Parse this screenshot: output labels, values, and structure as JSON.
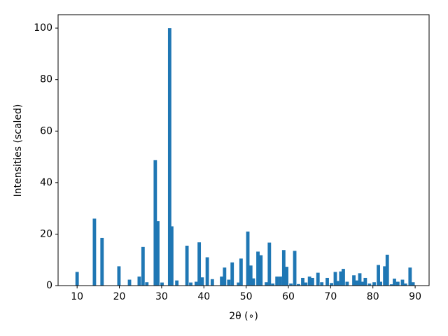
{
  "chart_data": {
    "type": "bar",
    "xlabel": "2θ (∘)",
    "ylabel": "Intensities (scaled)",
    "x": [
      10,
      14.1,
      15.9,
      19.9,
      22.4,
      24.7,
      25.6,
      26.5,
      28.5,
      29.1,
      30.1,
      31.9,
      32.4,
      33.6,
      36.0,
      36.9,
      38.2,
      38.9,
      39.6,
      40.8,
      42.0,
      44.2,
      44.9,
      45.9,
      46.7,
      48.2,
      48.8,
      50.4,
      51.1,
      51.7,
      52.8,
      53.5,
      54.8,
      55.5,
      56.3,
      57.3,
      58.1,
      58.9,
      59.6,
      60.6,
      61.5,
      62.4,
      63.4,
      64.1,
      65.0,
      65.7,
      67.0,
      67.9,
      69.2,
      70.2,
      71.1,
      71.6,
      72.4,
      73.0,
      73.9,
      75.5,
      76.2,
      76.9,
      77.6,
      78.2,
      79.2,
      80.3,
      81.3,
      81.8,
      82.8,
      83.4,
      84.4,
      85.1,
      85.9,
      87.0,
      87.7,
      88.8,
      89.5
    ],
    "values": [
      5.3,
      26,
      18.5,
      7.5,
      2.3,
      3.5,
      15,
      1.3,
      48.7,
      25,
      1.2,
      100,
      23,
      2,
      15.5,
      1.2,
      1.5,
      16.8,
      3.2,
      11,
      2.5,
      3.5,
      7,
      2.3,
      9,
      1.2,
      10.5,
      21,
      7.8,
      2.8,
      13.2,
      11.8,
      1.3,
      16.7,
      0.8,
      3.5,
      3.5,
      13.8,
      7.3,
      0.8,
      13.5,
      0.6,
      3,
      1.2,
      3.5,
      3,
      5,
      1.3,
      3,
      1,
      5.3,
      1.8,
      5.5,
      6.5,
      1.5,
      4,
      2,
      4.8,
      1.5,
      3,
      0.8,
      1.3,
      8,
      1.5,
      7.5,
      12,
      0.5,
      2.7,
      1.5,
      2.3,
      0.8,
      7,
      1.3
    ],
    "bar_width": 0.8,
    "color": "#1f77b4",
    "xlim": [
      5.5,
      93.3
    ],
    "ylim": [
      0,
      105.2
    ],
    "xticks": [
      10,
      20,
      30,
      40,
      50,
      60,
      70,
      80,
      90
    ],
    "yticks": [
      0,
      20,
      40,
      60,
      80,
      100
    ],
    "grid": false
  }
}
